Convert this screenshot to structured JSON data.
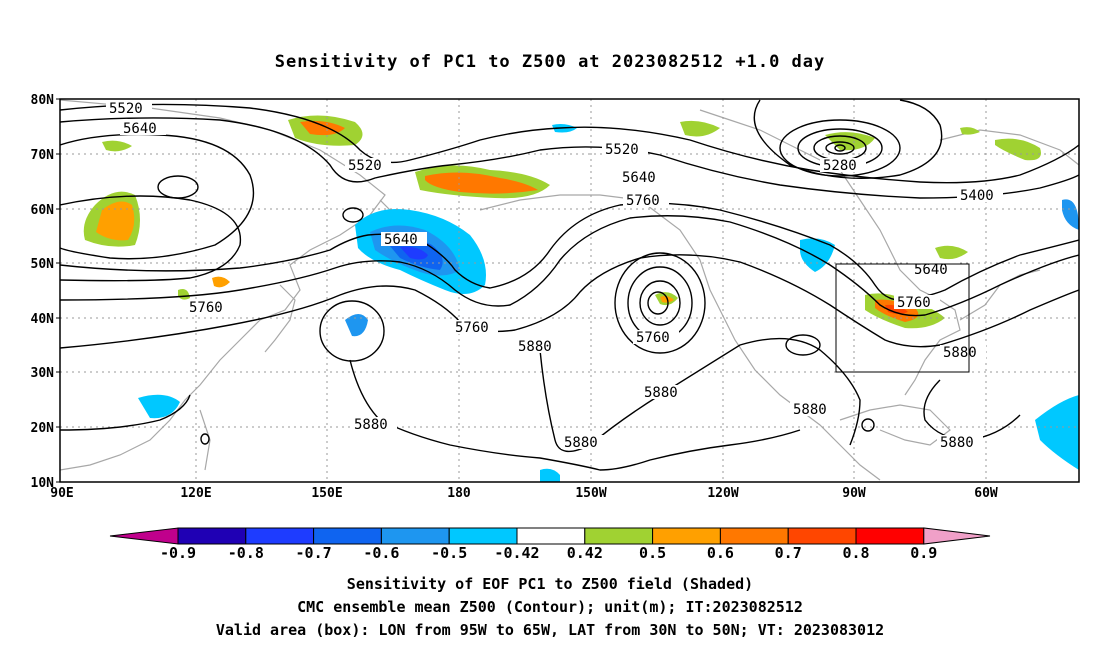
{
  "title": "Sensitivity of PC1 to Z500 at 2023082512 +1.0 day",
  "map": {
    "lat_labels": [
      "80N",
      "70N",
      "60N",
      "50N",
      "40N",
      "30N",
      "20N",
      "10N"
    ],
    "lon_labels": [
      "90E",
      "120E",
      "150E",
      "180",
      "150W",
      "120W",
      "90W",
      "60W"
    ],
    "contour_labels": [
      {
        "text": "5520",
        "x": 0
      },
      {
        "text": "5640",
        "x": 0
      },
      {
        "text": "5520",
        "x": 0
      },
      {
        "text": "5640",
        "x": 0
      },
      {
        "text": "5520",
        "x": 0
      },
      {
        "text": "5640",
        "x": 0
      },
      {
        "text": "5760",
        "x": 0
      },
      {
        "text": "5280",
        "x": 0
      },
      {
        "text": "5400",
        "x": 0
      },
      {
        "text": "5640",
        "x": 0
      },
      {
        "text": "5760",
        "x": 0
      },
      {
        "text": "5760",
        "x": 0
      },
      {
        "text": "5760",
        "x": 0
      },
      {
        "text": "5760",
        "x": 0
      },
      {
        "text": "5880",
        "x": 0
      },
      {
        "text": "5880",
        "x": 0
      },
      {
        "text": "5880",
        "x": 0
      },
      {
        "text": "5880",
        "x": 0
      },
      {
        "text": "5880",
        "x": 0
      },
      {
        "text": "5880",
        "x": 0
      },
      {
        "text": "5880",
        "x": 0
      }
    ],
    "valid_box": {
      "lon_from": "95W",
      "lon_to": "65W",
      "lat_from": "30N",
      "lat_to": "50N"
    }
  },
  "colorbar": {
    "labels": [
      "-0.9",
      "-0.8",
      "-0.7",
      "-0.6",
      "-0.5",
      "-0.42",
      "0.42",
      "0.5",
      "0.6",
      "0.7",
      "0.8",
      "0.9"
    ],
    "colors": [
      "#1f00b4",
      "#1e3cff",
      "#0f64f0",
      "#1e96f0",
      "#00c8ff",
      "#ffffff",
      "#a0d232",
      "#ffa000",
      "#ff7800",
      "#ff4600",
      "#ff0000"
    ],
    "low_extend_color": "#c0008c",
    "high_extend_color": "#f0a0c8"
  },
  "caption": {
    "line1": "Sensitivity of EOF PC1 to Z500 field (Shaded)",
    "line2": "CMC ensemble mean Z500 (Contour); unit(m); IT:2023082512",
    "line3": "Valid area (box): LON from 95W to 65W, LAT from 30N to 50N; VT: 2023083012"
  }
}
